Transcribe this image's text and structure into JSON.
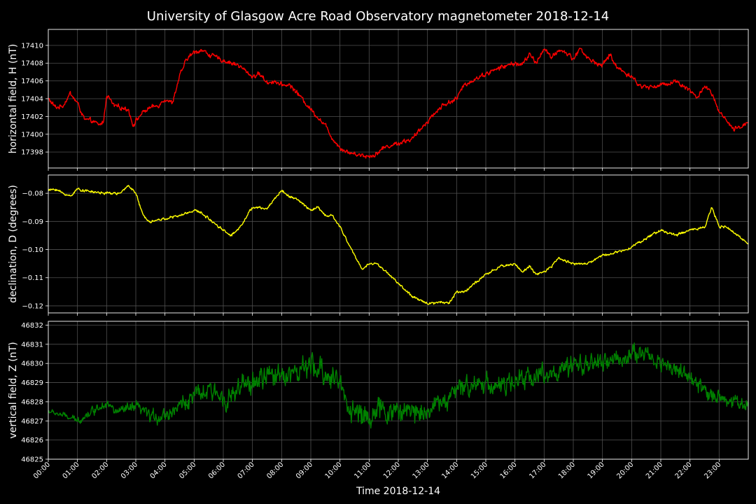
{
  "chart_data": {
    "type": "line",
    "title": "University of Glasgow Acre Road Observatory magnetometer 2018-12-14",
    "xlabel": "Time 2018-12-14",
    "x_ticks": [
      "00:00",
      "01:00",
      "02:00",
      "03:00",
      "04:00",
      "05:00",
      "06:00",
      "07:00",
      "08:00",
      "09:00",
      "10:00",
      "11:00",
      "12:00",
      "13:00",
      "14:00",
      "15:00",
      "16:00",
      "17:00",
      "18:00",
      "19:00",
      "20:00",
      "21:00",
      "22:00",
      "23:00"
    ],
    "x_range_hours": [
      0,
      24
    ],
    "grid": true,
    "panels": [
      {
        "id": "h",
        "ylabel": "horizontal field, H (nT)",
        "color": "#ff0000",
        "ylim": [
          17396.2,
          17411.8
        ],
        "yticks": [
          17398,
          17400,
          17402,
          17404,
          17406,
          17408,
          17410
        ],
        "ytick_labels": [
          "17398",
          "17400",
          "17402",
          "17404",
          "17406",
          "17408",
          "17410"
        ],
        "noise": 0.35,
        "series": {
          "name": "H",
          "x": [
            0,
            0.25,
            0.5,
            0.75,
            1.0,
            1.25,
            1.5,
            1.75,
            1.9,
            2.0,
            2.25,
            2.5,
            2.75,
            2.9,
            3.0,
            3.25,
            3.5,
            3.75,
            4.0,
            4.25,
            4.5,
            4.75,
            5.0,
            5.25,
            5.5,
            6.0,
            6.5,
            7.0,
            7.25,
            7.5,
            7.75,
            8.0,
            8.25,
            8.5,
            9.0,
            9.5,
            9.75,
            10.0,
            10.25,
            10.5,
            11.0,
            11.25,
            11.5,
            12.0,
            12.5,
            13.0,
            13.5,
            14.0,
            14.25,
            14.5,
            15.0,
            15.5,
            16.0,
            16.25,
            16.5,
            16.75,
            17.0,
            17.25,
            17.5,
            17.75,
            18.0,
            18.25,
            18.5,
            19.0,
            19.25,
            19.5,
            20.0,
            20.25,
            20.5,
            21.0,
            21.5,
            22.0,
            22.25,
            22.5,
            22.75,
            23.0,
            23.25,
            23.5,
            23.75,
            24.0
          ],
          "y": [
            17404.0,
            17403.0,
            17403.2,
            17404.6,
            17403.5,
            17401.6,
            17401.5,
            17401.0,
            17401.5,
            17404.5,
            17403.2,
            17403.0,
            17402.8,
            17401.0,
            17401.5,
            17402.5,
            17403.0,
            17403.2,
            17404.0,
            17403.5,
            17406.5,
            17408.5,
            17409.2,
            17409.5,
            17409.0,
            17408.3,
            17407.8,
            17406.5,
            17406.8,
            17405.8,
            17406.0,
            17405.5,
            17405.6,
            17404.8,
            17402.8,
            17401.0,
            17399.5,
            17398.5,
            17398.0,
            17397.8,
            17397.5,
            17397.8,
            17398.5,
            17399.0,
            17399.5,
            17401.5,
            17403.2,
            17404.0,
            17405.5,
            17406.0,
            17406.8,
            17407.5,
            17408.0,
            17407.8,
            17409.0,
            17408.0,
            17409.8,
            17408.5,
            17409.5,
            17409.2,
            17408.5,
            17409.7,
            17408.5,
            17407.7,
            17409.0,
            17407.5,
            17406.5,
            17405.5,
            17405.3,
            17405.5,
            17406.0,
            17405.0,
            17404.0,
            17405.5,
            17404.5,
            17402.5,
            17401.5,
            17400.5,
            17400.8,
            17401.5
          ]
        }
      },
      {
        "id": "d",
        "ylabel": "declination, D (degrees)",
        "color": "#ffff00",
        "ylim": [
          -0.1225,
          -0.0735
        ],
        "yticks": [
          -0.12,
          -0.11,
          -0.1,
          -0.09,
          -0.08
        ],
        "ytick_labels": [
          "−0.12",
          "−0.11",
          "−0.10",
          "−0.09",
          "−0.08"
        ],
        "noise": 0.0006,
        "series": {
          "name": "D",
          "x": [
            0,
            0.25,
            0.5,
            0.75,
            1.0,
            1.5,
            2.0,
            2.5,
            2.75,
            3.0,
            3.25,
            3.5,
            4.0,
            4.5,
            5.0,
            5.25,
            5.5,
            6.0,
            6.25,
            6.5,
            7.0,
            7.5,
            7.75,
            8.0,
            8.25,
            8.5,
            9.0,
            9.25,
            9.5,
            9.75,
            10.0,
            10.25,
            10.5,
            10.75,
            11.0,
            11.25,
            11.5,
            12.0,
            12.5,
            13.0,
            13.25,
            13.5,
            13.75,
            14.0,
            14.25,
            14.5,
            15.0,
            15.5,
            16.0,
            16.25,
            16.5,
            16.75,
            17.0,
            17.25,
            17.5,
            18.0,
            18.5,
            19.0,
            19.5,
            20.0,
            20.5,
            21.0,
            21.5,
            22.0,
            22.5,
            22.75,
            23.0,
            23.25,
            23.5,
            23.75,
            24.0
          ],
          "y": [
            -0.079,
            -0.0785,
            -0.08,
            -0.081,
            -0.0785,
            -0.0795,
            -0.08,
            -0.08,
            -0.077,
            -0.08,
            -0.088,
            -0.09,
            -0.089,
            -0.088,
            -0.086,
            -0.087,
            -0.089,
            -0.093,
            -0.095,
            -0.093,
            -0.085,
            -0.0855,
            -0.082,
            -0.079,
            -0.081,
            -0.082,
            -0.086,
            -0.085,
            -0.088,
            -0.088,
            -0.092,
            -0.097,
            -0.102,
            -0.107,
            -0.105,
            -0.105,
            -0.107,
            -0.112,
            -0.117,
            -0.119,
            -0.119,
            -0.1185,
            -0.119,
            -0.115,
            -0.115,
            -0.113,
            -0.109,
            -0.106,
            -0.105,
            -0.108,
            -0.106,
            -0.109,
            -0.108,
            -0.106,
            -0.103,
            -0.105,
            -0.105,
            -0.102,
            -0.101,
            -0.099,
            -0.096,
            -0.093,
            -0.095,
            -0.093,
            -0.092,
            -0.085,
            -0.092,
            -0.092,
            -0.094,
            -0.096,
            -0.0975
          ]
        }
      },
      {
        "id": "z",
        "ylabel": "vertical field, Z (nT)",
        "color": "#008000",
        "ylim": [
          46825,
          46832.2
        ],
        "yticks": [
          46825,
          46826,
          46827,
          46828,
          46829,
          46830,
          46831,
          46832
        ],
        "ytick_labels": [
          "46825",
          "46826",
          "46827",
          "46828",
          "46829",
          "46830",
          "46831",
          "46832"
        ],
        "noise": 0.3,
        "noise_amp_hours": [
          [
            0,
            0.15
          ],
          [
            6.5,
            0.75
          ],
          [
            10.2,
            0.9
          ],
          [
            13.5,
            0.75
          ],
          [
            24,
            0.55
          ]
        ],
        "series": {
          "name": "Z",
          "x": [
            0,
            0.5,
            1.0,
            1.5,
            2.0,
            2.25,
            2.5,
            3.0,
            3.25,
            3.5,
            4.0,
            4.5,
            5.0,
            5.5,
            6.0,
            6.25,
            6.5,
            7.0,
            7.5,
            8.0,
            8.5,
            9.0,
            9.5,
            10.0,
            10.25,
            10.5,
            11.0,
            11.5,
            12.0,
            12.5,
            13.0,
            13.5,
            14.0,
            14.5,
            15.0,
            15.5,
            16.0,
            16.5,
            17.0,
            17.5,
            18.0,
            18.5,
            19.0,
            19.5,
            20.0,
            20.5,
            21.0,
            21.5,
            22.0,
            22.5,
            23.0,
            23.5,
            24.0
          ],
          "y": [
            46827.5,
            46827.3,
            46827.0,
            46827.5,
            46828.0,
            46827.5,
            46827.5,
            46827.7,
            46827.5,
            46827.2,
            46827.3,
            46827.8,
            46828.3,
            46828.5,
            46828.3,
            46828.2,
            46828.6,
            46829.0,
            46829.3,
            46829.5,
            46829.5,
            46829.8,
            46829.5,
            46829.0,
            46828.0,
            46827.4,
            46827.3,
            46827.5,
            46827.5,
            46827.5,
            46827.6,
            46828.0,
            46828.5,
            46829.0,
            46829.0,
            46828.8,
            46829.0,
            46829.3,
            46829.5,
            46829.5,
            46829.8,
            46830.0,
            46830.0,
            46830.2,
            46830.5,
            46830.5,
            46830.0,
            46829.8,
            46829.2,
            46828.5,
            46828.3,
            46828.0,
            46827.8
          ]
        }
      }
    ]
  }
}
